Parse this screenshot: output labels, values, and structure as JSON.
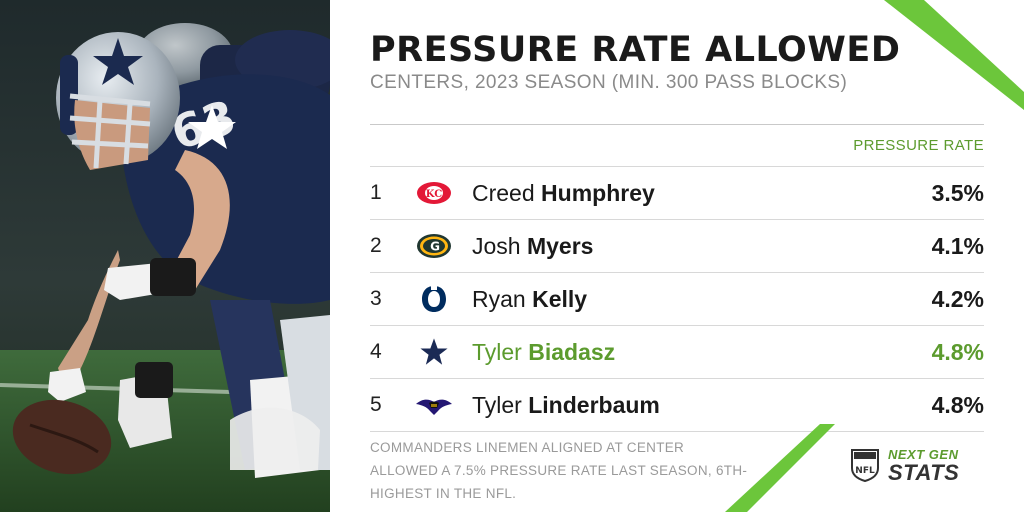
{
  "title": "PRESSURE RATE ALLOWED",
  "subtitle": "CENTERS, 2023 SEASON (MIN. 300 PASS BLOCKS)",
  "column_header": "PRESSURE RATE",
  "rows": [
    {
      "rank": "1",
      "first": "Creed",
      "last": "Humphrey",
      "rate": "3.5%",
      "team_icon": "chiefs-logo-icon"
    },
    {
      "rank": "2",
      "first": "Josh",
      "last": "Myers",
      "rate": "4.1%",
      "team_icon": "packers-logo-icon"
    },
    {
      "rank": "3",
      "first": "Ryan",
      "last": "Kelly",
      "rate": "4.2%",
      "team_icon": "colts-logo-icon"
    },
    {
      "rank": "4",
      "first": "Tyler",
      "last": "Biadasz",
      "rate": "4.8%",
      "team_icon": "cowboys-logo-icon",
      "highlight": true
    },
    {
      "rank": "5",
      "first": "Tyler",
      "last": "Linderbaum",
      "rate": "4.8%",
      "team_icon": "ravens-logo-icon"
    }
  ],
  "footnote": "COMMANDERS LINEMEN ALIGNED AT CENTER ALLOWED A 7.5% PRESSURE RATE LAST SEASON, 6TH-HIGHEST IN THE NFL.",
  "brand": {
    "top": "NEXT GEN",
    "bottom": "STATS",
    "shield_text": "NFL"
  },
  "colors": {
    "accent": "#5c9b2e",
    "stripe": "#6cc63b",
    "text": "#1a1a1a",
    "muted": "#8a8a8a"
  }
}
